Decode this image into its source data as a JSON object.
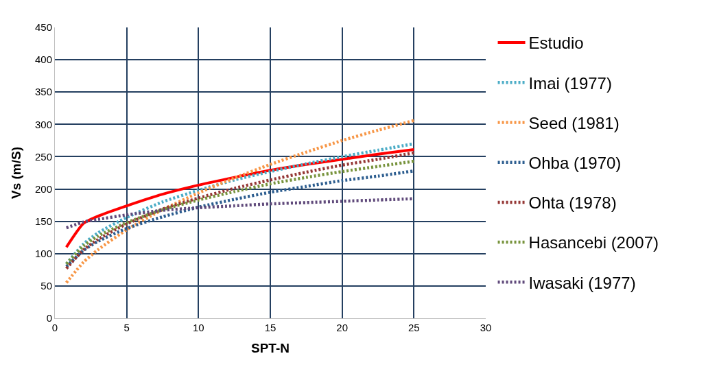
{
  "chart_data": {
    "type": "line",
    "xlabel": "SPT-N",
    "ylabel": "Vs (m/S)",
    "x": [
      0.8,
      2,
      3,
      5,
      7.5,
      10,
      12.5,
      15,
      17.5,
      20,
      22.5,
      25
    ],
    "xlim": [
      0,
      30
    ],
    "xticks": [
      0,
      5,
      10,
      15,
      20,
      25,
      30
    ],
    "ylim": [
      0,
      450
    ],
    "yticks": [
      0,
      50,
      100,
      150,
      200,
      250,
      300,
      350,
      400,
      450
    ],
    "grid": true,
    "legend": "right",
    "marker": "none",
    "series": [
      {
        "name": "Estudio",
        "color": "#ff0000",
        "line_style": "solid",
        "values": [
          110,
          147,
          158,
          174,
          192,
          206,
          218,
          229,
          238,
          246,
          254,
          261
        ]
      },
      {
        "name": "Imai (1977)",
        "color": "#4bacc6",
        "line_style": "dotted",
        "values": [
          84,
          115,
          132,
          156,
          180,
          198,
          214,
          227,
          239,
          250,
          260,
          270
        ]
      },
      {
        "name": "Seed (1981)",
        "color": "#f79646",
        "line_style": "dotted",
        "values": [
          55,
          87,
          106,
          137,
          168,
          194,
          217,
          238,
          257,
          275,
          291,
          306
        ]
      },
      {
        "name": "Ohba (1970)",
        "color": "#2c5d8f",
        "line_style": "dotted",
        "values": [
          80,
          105,
          119,
          139,
          157,
          172,
          184,
          195,
          204,
          213,
          220,
          228
        ]
      },
      {
        "name": "Ohta (1978)",
        "color": "#953735",
        "line_style": "dotted",
        "values": [
          77,
          106,
          122,
          146,
          169,
          186,
          201,
          214,
          226,
          237,
          246,
          256
        ]
      },
      {
        "name": "Hasancebi (2007)",
        "color": "#77933c",
        "line_style": "dotted",
        "values": [
          84,
          112,
          127,
          148,
          168,
          183,
          196,
          208,
          218,
          227,
          235,
          243
        ]
      },
      {
        "name": "Iwasaki (1977)",
        "color": "#604a7b",
        "line_style": "dotted",
        "values": [
          140,
          149,
          153,
          160,
          167,
          171,
          174,
          177,
          179,
          181,
          183,
          185
        ]
      }
    ]
  }
}
